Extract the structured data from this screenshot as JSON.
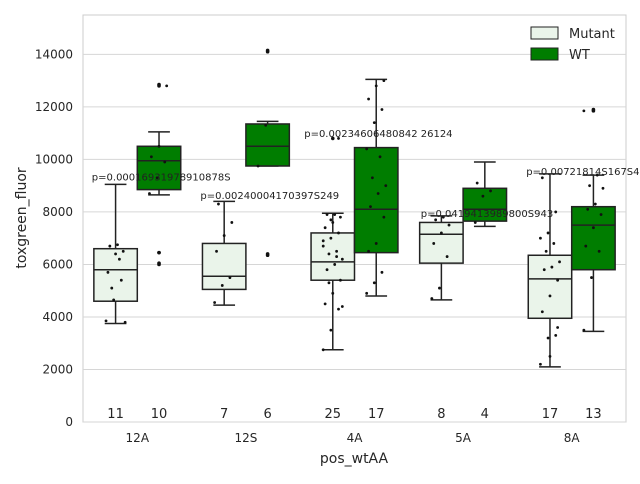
{
  "chart_data": {
    "type": "box",
    "title": "",
    "xlabel": "pos_wtAA",
    "ylabel": "toxgreen_fluor",
    "ylim": [
      0,
      15500
    ],
    "yticks": [
      0,
      2000,
      4000,
      6000,
      8000,
      10000,
      12000,
      14000
    ],
    "ytick_labels": [
      "0",
      "2000",
      "4000",
      "6000",
      "8000",
      "10000",
      "12000",
      "14000"
    ],
    "grid": true,
    "legend": {
      "placement": "top-right",
      "entries": [
        "Mutant",
        "WT"
      ]
    },
    "categories": [
      "12A",
      "12S",
      "4A",
      "5A",
      "8A"
    ],
    "colors": {
      "Mutant": "#eaf4ea",
      "WT": "#007d00"
    },
    "series": [
      {
        "name": "Mutant",
        "boxes": [
          {
            "whislo": 3750,
            "q1": 4600,
            "med": 5800,
            "q3": 6600,
            "whishi": 9050,
            "fliers": [],
            "points": [
              3850,
              4650,
              5400,
              5700,
              6400,
              6500,
              6700,
              6750,
              3800,
              5100,
              6200
            ]
          },
          {
            "whislo": 4450,
            "q1": 5050,
            "med": 5550,
            "q3": 6800,
            "whishi": 8400,
            "fliers": [],
            "points": [
              4550,
              5200,
              5500,
              6500,
              7100,
              7600,
              8300
            ]
          },
          {
            "whislo": 2750,
            "q1": 5400,
            "med": 6100,
            "q3": 7200,
            "whishi": 7950,
            "fliers": [
              10800
            ],
            "points": [
              2750,
              3500,
              4300,
              4500,
              4900,
              5400,
              5800,
              6000,
              6200,
              6400,
              6500,
              6700,
              7000,
              7200,
              7400,
              7600,
              7800,
              7900,
              7900,
              4400,
              5300,
              6300,
              6900,
              7700,
              10800
            ]
          },
          {
            "whislo": 4650,
            "q1": 6050,
            "med": 7150,
            "q3": 7600,
            "whishi": 7850,
            "fliers": [],
            "points": [
              4700,
              5100,
              6300,
              6800,
              7200,
              7500,
              7700,
              7800
            ]
          },
          {
            "whislo": 2100,
            "q1": 3950,
            "med": 5450,
            "q3": 6350,
            "whishi": 9450,
            "fliers": [],
            "points": [
              2200,
              3200,
              3300,
              4200,
              4800,
              5400,
              5800,
              5900,
              6100,
              6500,
              6800,
              7000,
              7200,
              8000,
              9300,
              2500,
              3600
            ]
          }
        ]
      },
      {
        "name": "WT",
        "boxes": [
          {
            "whislo": 8650,
            "q1": 8850,
            "med": 9950,
            "q3": 10500,
            "whishi": 11050,
            "fliers": [
              6000,
              6050,
              6450,
              6450,
              12800,
              12850
            ],
            "points": [
              8700,
              9300,
              9900,
              10100,
              10500,
              12800
            ]
          },
          {
            "whislo": 9750,
            "q1": 9750,
            "med": 10500,
            "q3": 11350,
            "whishi": 11450,
            "fliers": [
              6350,
              6400,
              14100,
              14150
            ],
            "points": [
              9750,
              11300
            ]
          },
          {
            "whislo": 4800,
            "q1": 6450,
            "med": 8100,
            "q3": 10450,
            "whishi": 13050,
            "fliers": [],
            "points": [
              4900,
              5300,
              5700,
              6500,
              6800,
              7800,
              8200,
              8700,
              9000,
              9300,
              10100,
              10400,
              11400,
              11900,
              12300,
              12800,
              13000
            ]
          },
          {
            "whislo": 7450,
            "q1": 7650,
            "med": 8100,
            "q3": 8900,
            "whishi": 9900,
            "fliers": [],
            "points": [
              7600,
              8600,
              8800,
              9100
            ]
          },
          {
            "whislo": 3450,
            "q1": 5800,
            "med": 7500,
            "q3": 8200,
            "whishi": 9400,
            "fliers": [
              11850,
              11900
            ],
            "points": [
              3500,
              5500,
              6500,
              6700,
              7400,
              7900,
              8100,
              8300,
              8900,
              9000,
              9400,
              11850
            ]
          }
        ]
      }
    ],
    "counts": [
      {
        "mutant": "11",
        "wt": "10"
      },
      {
        "mutant": "7",
        "wt": "6"
      },
      {
        "mutant": "25",
        "wt": "17"
      },
      {
        "mutant": "8",
        "wt": "4"
      },
      {
        "mutant": "17",
        "wt": "13"
      }
    ],
    "annotations": [
      {
        "text": "p=0.00016931978910878S",
        "y": 9200
      },
      {
        "text": "p=0.00240004170397S249",
        "y": 8500
      },
      {
        "text": "p=0.00234606480842 26124",
        "y": 10850
      },
      {
        "text": "p=0.0419413989800S943",
        "y": 7800
      },
      {
        "text": "p=0.00721814S167S40273",
        "y": 9400
      }
    ]
  }
}
